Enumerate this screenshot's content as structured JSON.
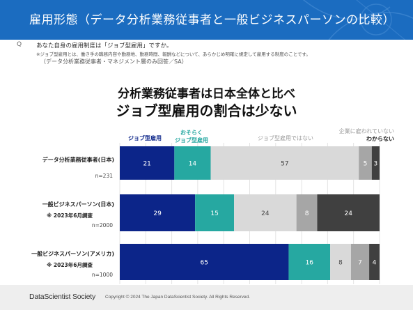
{
  "header": {
    "title": "雇用形態（データ分析業務従事者と一般ビジネスパーソンの比較）"
  },
  "question": {
    "icon": "search-icon",
    "icon_glyph": "Q",
    "text": "あなた自身の雇用制度は「ジョブ型雇用」ですか。",
    "note": "※ジョブ型雇用とは、働き手の職務内容や勤務地、勤務時間、報酬などについて、あらかじめ明確に規定して雇用する制度のことです。",
    "scope": "（データ分析業務従事者・マネジメント層のみ回答／SA）"
  },
  "headline": {
    "line1": "分析業務従事者は日本全体と比べ",
    "line2": "ジョブ型雇用の割合は少ない"
  },
  "chart_data": {
    "type": "bar",
    "orientation": "horizontal-stacked",
    "xlim": [
      0,
      100
    ],
    "unit": "%",
    "grid": true,
    "categories": [
      {
        "label": "データ分析業務従事者(日本)",
        "note": "",
        "n": "n=231"
      },
      {
        "label": "一般ビジネスパーソン(日本)",
        "note": "※ 2023年6月調査",
        "n": "n=2000"
      },
      {
        "label": "一般ビジネスパーソン(アメリカ)",
        "note": "※ 2023年6月調査",
        "n": "n=1000"
      }
    ],
    "series": [
      {
        "name": "ジョブ型雇用",
        "color": "#0c2589",
        "text_color": "#ffffff",
        "values": [
          21,
          29,
          65
        ]
      },
      {
        "name": "おそらくジョブ型雇用",
        "color": "#26a8a1",
        "text_color": "#ffffff",
        "values": [
          14,
          15,
          16
        ]
      },
      {
        "name": "ジョブ型雇用ではない",
        "color": "#d9d9d9",
        "text_color": "#444444",
        "values": [
          57,
          24,
          8
        ]
      },
      {
        "name": "企業に雇われていない",
        "color": "#a6a6a6",
        "text_color": "#ffffff",
        "values": [
          5,
          8,
          7
        ]
      },
      {
        "name": "わからない",
        "color": "#404040",
        "text_color": "#ffffff",
        "values": [
          3,
          24,
          4
        ]
      }
    ],
    "legend": [
      {
        "text": "ジョブ型雇用",
        "color": "#0c2589",
        "bold": true
      },
      {
        "text": "おそらく\nジョブ型雇用",
        "color": "#26a8a1",
        "bold": true
      },
      {
        "text": "ジョブ型雇用ではない",
        "color": "#999999",
        "bold": false
      },
      {
        "text": "企業に雇われていない",
        "color": "#999999",
        "bold": false
      },
      {
        "text": "わからない",
        "color": "#222222",
        "bold": true
      }
    ]
  },
  "footer": {
    "brand": "DataScientist Society",
    "copyright": "Copyright © 2024 The Japan DataScientist Society. All Rights Reserved."
  }
}
